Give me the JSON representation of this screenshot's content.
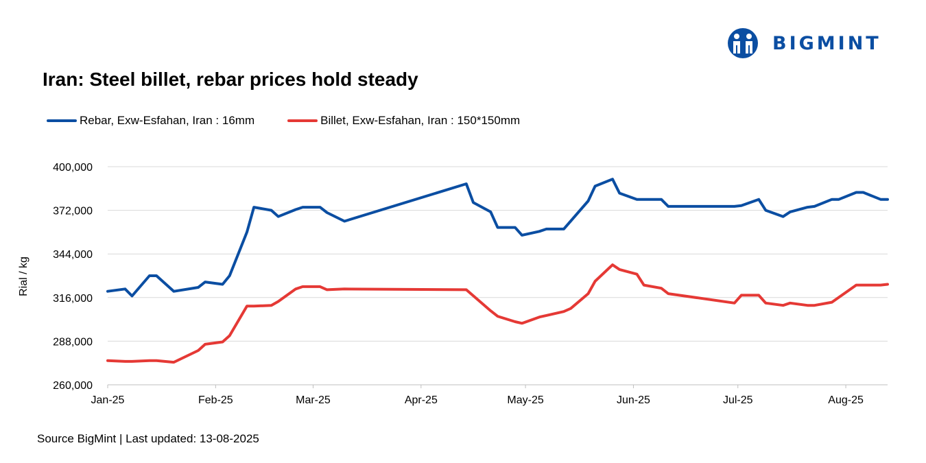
{
  "brand": {
    "name": "BIGMINT",
    "color": "#0b4ea2"
  },
  "title": "Iran: Steel billet, rebar prices hold steady",
  "source": "Source BigMint | Last updated: 13-08-2025",
  "chart_data": {
    "type": "line",
    "title": "Iran: Steel billet, rebar prices hold steady",
    "xlabel": "",
    "ylabel": "Rial / kg",
    "ylim": [
      260000,
      400000
    ],
    "yticks": [
      260000,
      288000,
      316000,
      344000,
      372000,
      400000
    ],
    "ytick_labels": [
      "260,000",
      "288,000",
      "316,000",
      "344,000",
      "372,000",
      "400,000"
    ],
    "xlim": [
      "2025-01-01",
      "2025-08-13"
    ],
    "xticks": [
      "2025-01-01",
      "2025-02-01",
      "2025-03-01",
      "2025-04-01",
      "2025-05-01",
      "2025-06-01",
      "2025-07-01",
      "2025-08-01"
    ],
    "xtick_labels": [
      "Jan-25",
      "Feb-25",
      "Mar-25",
      "Apr-25",
      "May-25",
      "Jun-25",
      "Jul-25",
      "Aug-25"
    ],
    "grid": "horizontal",
    "legend": "top-left",
    "series": [
      {
        "name": "Rebar, Exw-Esfahan, Iran : 16mm",
        "color": "#0b4ea2",
        "points": [
          [
            "2025-01-01",
            320000
          ],
          [
            "2025-01-06",
            321500
          ],
          [
            "2025-01-08",
            317000
          ],
          [
            "2025-01-13",
            330000
          ],
          [
            "2025-01-15",
            330000
          ],
          [
            "2025-01-20",
            320000
          ],
          [
            "2025-01-27",
            322500
          ],
          [
            "2025-01-29",
            326000
          ],
          [
            "2025-02-03",
            324500
          ],
          [
            "2025-02-05",
            330000
          ],
          [
            "2025-02-10",
            358000
          ],
          [
            "2025-02-12",
            374000
          ],
          [
            "2025-02-17",
            372000
          ],
          [
            "2025-02-19",
            368000
          ],
          [
            "2025-02-24",
            372500
          ],
          [
            "2025-02-26",
            374000
          ],
          [
            "2025-03-03",
            374000
          ],
          [
            "2025-03-05",
            370500
          ],
          [
            "2025-03-10",
            365000
          ],
          [
            "2025-04-14",
            389000
          ],
          [
            "2025-04-16",
            377000
          ],
          [
            "2025-04-21",
            371000
          ],
          [
            "2025-04-23",
            361000
          ],
          [
            "2025-04-28",
            361000
          ],
          [
            "2025-04-30",
            356000
          ],
          [
            "2025-05-05",
            358500
          ],
          [
            "2025-05-07",
            360000
          ],
          [
            "2025-05-12",
            360000
          ],
          [
            "2025-05-19",
            378000
          ],
          [
            "2025-05-21",
            387500
          ],
          [
            "2025-05-26",
            392000
          ],
          [
            "2025-05-28",
            383000
          ],
          [
            "2025-06-02",
            379000
          ],
          [
            "2025-06-09",
            379000
          ],
          [
            "2025-06-11",
            374500
          ],
          [
            "2025-06-30",
            374500
          ],
          [
            "2025-07-02",
            375000
          ],
          [
            "2025-07-07",
            379000
          ],
          [
            "2025-07-09",
            372000
          ],
          [
            "2025-07-14",
            368000
          ],
          [
            "2025-07-16",
            371000
          ],
          [
            "2025-07-21",
            374000
          ],
          [
            "2025-07-23",
            374500
          ],
          [
            "2025-07-28",
            379000
          ],
          [
            "2025-07-30",
            379000
          ],
          [
            "2025-08-04",
            383500
          ],
          [
            "2025-08-06",
            383500
          ],
          [
            "2025-08-11",
            379000
          ],
          [
            "2025-08-13",
            379000
          ]
        ]
      },
      {
        "name": "Billet, Exw-Esfahan, Iran : 150*150mm",
        "color": "#e53935",
        "points": [
          [
            "2025-01-01",
            275500
          ],
          [
            "2025-01-06",
            275000
          ],
          [
            "2025-01-08",
            275000
          ],
          [
            "2025-01-13",
            275500
          ],
          [
            "2025-01-15",
            275500
          ],
          [
            "2025-01-20",
            274500
          ],
          [
            "2025-01-27",
            282000
          ],
          [
            "2025-01-29",
            286000
          ],
          [
            "2025-02-03",
            287500
          ],
          [
            "2025-02-05",
            291500
          ],
          [
            "2025-02-10",
            310500
          ],
          [
            "2025-02-12",
            310500
          ],
          [
            "2025-02-17",
            311000
          ],
          [
            "2025-02-19",
            313500
          ],
          [
            "2025-02-24",
            321500
          ],
          [
            "2025-02-26",
            323000
          ],
          [
            "2025-03-03",
            323000
          ],
          [
            "2025-03-05",
            321000
          ],
          [
            "2025-03-10",
            321500
          ],
          [
            "2025-04-14",
            321000
          ],
          [
            "2025-04-21",
            307500
          ],
          [
            "2025-04-23",
            304000
          ],
          [
            "2025-04-28",
            300500
          ],
          [
            "2025-04-30",
            299500
          ],
          [
            "2025-05-05",
            303500
          ],
          [
            "2025-05-07",
            304500
          ],
          [
            "2025-05-12",
            307000
          ],
          [
            "2025-05-14",
            309000
          ],
          [
            "2025-05-19",
            318500
          ],
          [
            "2025-05-21",
            326500
          ],
          [
            "2025-05-26",
            337000
          ],
          [
            "2025-05-28",
            334000
          ],
          [
            "2025-06-02",
            331000
          ],
          [
            "2025-06-04",
            324000
          ],
          [
            "2025-06-09",
            322000
          ],
          [
            "2025-06-11",
            318500
          ],
          [
            "2025-06-30",
            312500
          ],
          [
            "2025-07-02",
            317500
          ],
          [
            "2025-07-07",
            317500
          ],
          [
            "2025-07-09",
            312500
          ],
          [
            "2025-07-14",
            311000
          ],
          [
            "2025-07-16",
            312500
          ],
          [
            "2025-07-21",
            311000
          ],
          [
            "2025-07-23",
            311000
          ],
          [
            "2025-07-28",
            313000
          ],
          [
            "2025-08-04",
            324000
          ],
          [
            "2025-08-11",
            324000
          ],
          [
            "2025-08-13",
            324500
          ]
        ]
      }
    ]
  }
}
